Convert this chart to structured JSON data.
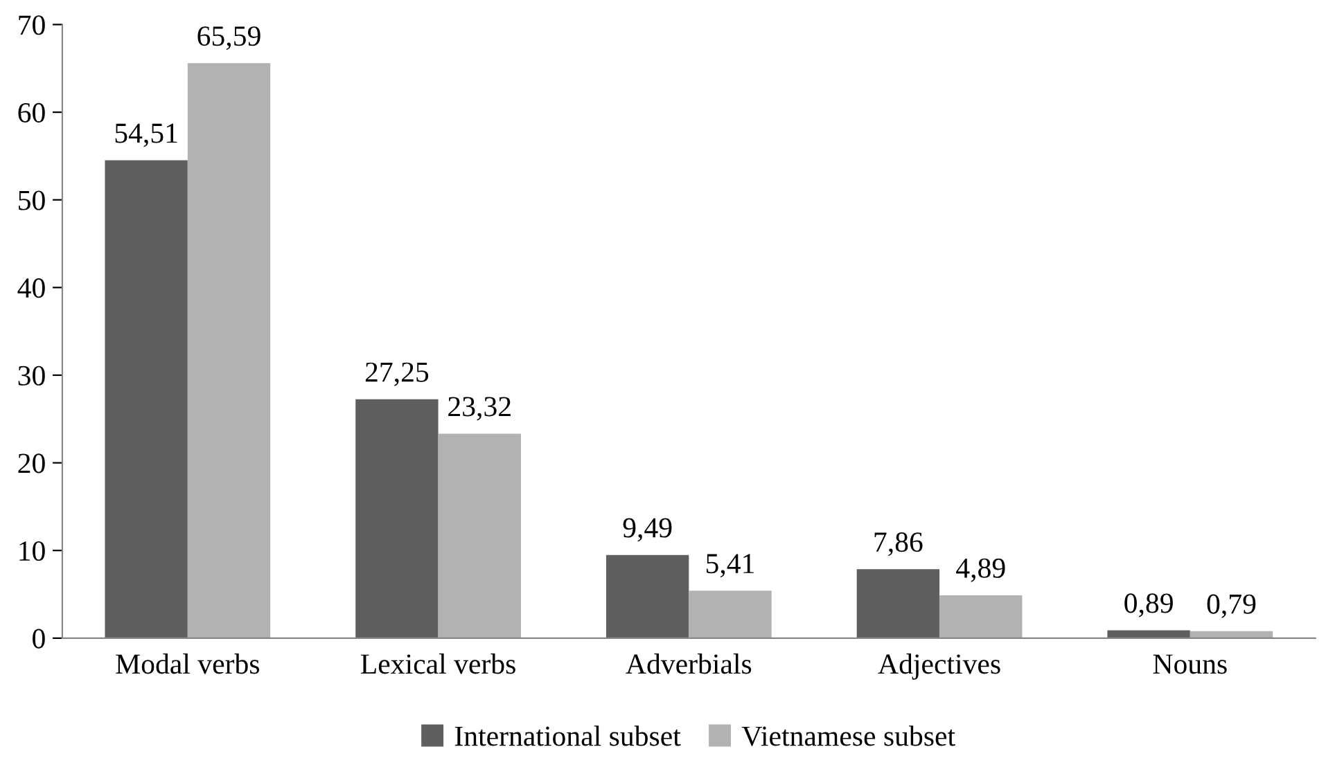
{
  "chart_data": {
    "type": "bar",
    "categories": [
      "Modal verbs",
      "Lexical verbs",
      "Adverbials",
      "Adjectives",
      "Nouns"
    ],
    "series": [
      {
        "name": "International subset",
        "color": "#5f5f5f",
        "values": [
          54.51,
          27.25,
          9.49,
          7.86,
          0.89
        ],
        "value_labels": [
          "54,51",
          "27,25",
          "9,49",
          "7,86",
          "0,89"
        ]
      },
      {
        "name": "Vietnamese subset",
        "color": "#b2b2b2",
        "values": [
          65.59,
          23.32,
          5.41,
          4.89,
          0.79
        ],
        "value_labels": [
          "65,59",
          "23,32",
          "5,41",
          "4,89",
          "0,79"
        ]
      }
    ],
    "ylim": [
      0,
      70
    ],
    "yticks": [
      0,
      10,
      20,
      30,
      40,
      50,
      60,
      70
    ],
    "grid": false,
    "legend": "bottom"
  }
}
